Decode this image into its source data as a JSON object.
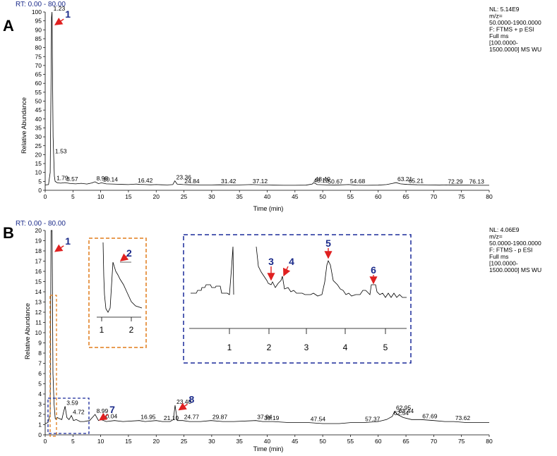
{
  "chart_data": [
    {
      "panel": "A",
      "type": "line",
      "rt_label": "RT: 0.00 - 80.00",
      "info": [
        "NL: 5.14E9",
        "m/z=",
        "50.0000-1900.0000",
        "F: FTMS + p ESI",
        "Full ms",
        "[100.0000-",
        "1500.0000]  MS WU"
      ],
      "xlabel": "Time (min)",
      "ylabel": "Relative Abundance",
      "xlim": [
        0,
        80
      ],
      "ylim": [
        0,
        100
      ],
      "xticks": [
        0,
        5,
        10,
        15,
        20,
        25,
        30,
        35,
        40,
        45,
        50,
        55,
        60,
        65,
        70,
        75,
        80
      ],
      "yticks": [
        0,
        5,
        10,
        15,
        20,
        25,
        30,
        35,
        40,
        45,
        50,
        55,
        60,
        65,
        70,
        75,
        80,
        85,
        90,
        95,
        100
      ],
      "x": [
        0,
        0.6,
        0.9,
        1.05,
        1.15,
        1.23,
        1.32,
        1.42,
        1.53,
        1.65,
        1.79,
        2.2,
        2.8,
        3.57,
        4.5,
        5.5,
        6.5,
        7.5,
        8.4,
        8.98,
        9.6,
        10.14,
        11,
        12,
        13,
        14,
        15,
        16.42,
        17,
        18,
        19,
        20,
        21,
        22,
        23,
        23.36,
        23.8,
        24.84,
        26,
        28,
        30,
        31.42,
        33,
        35,
        37.12,
        39,
        41,
        43,
        45,
        47,
        48.12,
        48.4,
        49,
        50.67,
        52,
        54.68,
        56,
        58,
        60,
        61.5,
        62.5,
        63.21,
        64,
        65.21,
        67,
        69,
        71,
        72.29,
        74,
        76.13,
        78,
        80
      ],
      "y": [
        3,
        3.2,
        10,
        60,
        97,
        100,
        65,
        30,
        20,
        8,
        5,
        4.2,
        4,
        4.3,
        3.8,
        3.6,
        3.9,
        3.5,
        4.1,
        4.8,
        3.7,
        4.2,
        3.6,
        3.5,
        3.4,
        3.3,
        3.2,
        3.5,
        3.3,
        3.2,
        3.1,
        3.2,
        3.1,
        3,
        3.2,
        5.3,
        3.4,
        3.2,
        3.1,
        3,
        3,
        3.1,
        3,
        3,
        3.2,
        3,
        2.9,
        2.8,
        2.8,
        2.9,
        3.5,
        4.3,
        3.2,
        3,
        2.9,
        3.2,
        2.9,
        2.8,
        2.9,
        3.2,
        3.8,
        4.3,
        3.6,
        3.3,
        3.1,
        3,
        2.9,
        3,
        2.9,
        2.9,
        2.8,
        2.8
      ],
      "peak_labels": [
        {
          "x": 1.23,
          "y": 100,
          "text": "1.23"
        },
        {
          "x": 1.53,
          "y": 20,
          "text": "1.53"
        },
        {
          "x": 1.79,
          "y": 5,
          "text": "1.79"
        },
        {
          "x": 3.57,
          "y": 4.3,
          "text": "3.57"
        },
        {
          "x": 8.98,
          "y": 4.8,
          "text": "8.98"
        },
        {
          "x": 10.14,
          "y": 4.2,
          "text": "10.14"
        },
        {
          "x": 16.42,
          "y": 3.5,
          "text": "16.42"
        },
        {
          "x": 23.36,
          "y": 5.3,
          "text": "23.36"
        },
        {
          "x": 24.84,
          "y": 3.2,
          "text": "24.84"
        },
        {
          "x": 31.42,
          "y": 3.1,
          "text": "31.42"
        },
        {
          "x": 37.12,
          "y": 3.2,
          "text": "37.12"
        },
        {
          "x": 48.12,
          "y": 3.5,
          "text": "48.12"
        },
        {
          "x": 48.4,
          "y": 4.3,
          "text": "48.40"
        },
        {
          "x": 50.67,
          "y": 3,
          "text": "50.67"
        },
        {
          "x": 54.68,
          "y": 3.2,
          "text": "54.68"
        },
        {
          "x": 63.21,
          "y": 4.3,
          "text": "63.21"
        },
        {
          "x": 65.21,
          "y": 3.3,
          "text": "65.21"
        },
        {
          "x": 72.29,
          "y": 3.0,
          "text": "72.29"
        },
        {
          "x": 76.13,
          "y": 2.9,
          "text": "76.13"
        }
      ],
      "annotations": [
        {
          "text": "1",
          "x": 1.3,
          "y": 96
        }
      ]
    },
    {
      "panel": "B",
      "type": "line",
      "rt_label": "RT: 0.00 - 80.00",
      "info": [
        "NL: 4.06E9",
        "m/z=",
        "50.0000-1900.0000",
        "F: FTMS - p ESI",
        "Full ms",
        "[100.0000-",
        "1500.0000]  MS WU"
      ],
      "xlabel": "Time (min)",
      "ylabel": "Relative Abundance",
      "xlim": [
        0,
        80
      ],
      "ylim": [
        0,
        20
      ],
      "xticks": [
        0,
        5,
        10,
        15,
        20,
        25,
        30,
        35,
        40,
        45,
        50,
        55,
        60,
        65,
        70,
        75,
        80
      ],
      "yticks": [
        0,
        1,
        2,
        3,
        4,
        5,
        6,
        7,
        8,
        9,
        10,
        11,
        12,
        13,
        14,
        15,
        16,
        17,
        18,
        19,
        20
      ],
      "x": [
        0,
        0.5,
        0.9,
        1.05,
        1.1,
        1.25,
        1.4,
        1.6,
        1.8,
        2.0,
        2.2,
        2.5,
        3.0,
        3.3,
        3.59,
        3.9,
        4.3,
        4.72,
        5.1,
        5.6,
        6.3,
        7,
        8,
        8.99,
        9.6,
        10.04,
        11,
        12.5,
        14,
        16.95,
        18,
        20,
        21.1,
        22.5,
        23.1,
        23.4,
        23.8,
        24.77,
        26,
        28,
        29.87,
        32,
        34,
        37.94,
        39.19,
        41,
        44,
        47.54,
        50,
        53,
        55,
        57.37,
        60,
        61.5,
        62.54,
        62.95,
        63.44,
        64.5,
        66,
        67.69,
        70,
        72,
        73.62,
        76,
        78,
        80
      ],
      "y": [
        1.1,
        1.2,
        2,
        20,
        20,
        20,
        6,
        3,
        1.6,
        1.5,
        1.7,
        1.6,
        1.5,
        2.2,
        2.8,
        1.7,
        1.5,
        1.9,
        1.4,
        1.5,
        1.3,
        1.3,
        1.4,
        2,
        1.4,
        1.5,
        1.3,
        1.4,
        1.3,
        1.4,
        1.3,
        1.4,
        1.3,
        1.3,
        1.5,
        2.9,
        1.4,
        1.4,
        1.3,
        1.3,
        1.4,
        1.3,
        1.3,
        1.4,
        1.3,
        1.3,
        1.2,
        1.2,
        1.1,
        1.1,
        1.2,
        1.2,
        1.3,
        1.5,
        1.8,
        2.3,
        2.0,
        1.7,
        1.5,
        1.5,
        1.4,
        1.3,
        1.3,
        1.2,
        1.2,
        1.2
      ],
      "peak_labels": [
        {
          "x": 3.59,
          "y": 2.8,
          "text": "3.59"
        },
        {
          "x": 4.72,
          "y": 1.9,
          "text": "4.72"
        },
        {
          "x": 8.99,
          "y": 2.0,
          "text": "8.99"
        },
        {
          "x": 10.04,
          "y": 1.5,
          "text": "10.04"
        },
        {
          "x": 16.95,
          "y": 1.4,
          "text": "16.95"
        },
        {
          "x": 21.1,
          "y": 1.3,
          "text": "21.10"
        },
        {
          "x": 23.4,
          "y": 2.9,
          "text": "23.40"
        },
        {
          "x": 24.77,
          "y": 1.4,
          "text": "24.77"
        },
        {
          "x": 29.87,
          "y": 1.4,
          "text": "29.87"
        },
        {
          "x": 37.94,
          "y": 1.4,
          "text": "37.94"
        },
        {
          "x": 39.19,
          "y": 1.3,
          "text": "39.19"
        },
        {
          "x": 47.54,
          "y": 1.2,
          "text": "47.54"
        },
        {
          "x": 57.37,
          "y": 1.2,
          "text": "57.37"
        },
        {
          "x": 62.54,
          "y": 1.8,
          "text": "62.54"
        },
        {
          "x": 62.95,
          "y": 2.3,
          "text": "62.95"
        },
        {
          "x": 63.44,
          "y": 2.0,
          "text": "63.44"
        },
        {
          "x": 67.69,
          "y": 1.5,
          "text": "67.69"
        },
        {
          "x": 73.62,
          "y": 1.3,
          "text": "73.62"
        }
      ],
      "annotations": [
        {
          "text": "1",
          "x": 1.3,
          "y": 18.5
        },
        {
          "text": "7",
          "x": 9.3,
          "y": 2.0
        },
        {
          "text": "8",
          "x": 23.6,
          "y": 3.0
        }
      ],
      "inset_orange": {
        "xticks": [
          "1",
          "2"
        ],
        "label": "2"
      },
      "inset_blue": {
        "xticks": [
          "1",
          "2",
          "3",
          "4",
          "5"
        ],
        "labels": [
          "3",
          "4",
          "5",
          "6"
        ]
      }
    }
  ],
  "panel_letters": [
    "A",
    "B"
  ],
  "colors": {
    "trace": "#000000",
    "arrow": "#e02020",
    "label": "#1a2a8a",
    "rt": "#1a2a8a",
    "orange": "#e07b1a",
    "blue": "#1a2a9a"
  }
}
